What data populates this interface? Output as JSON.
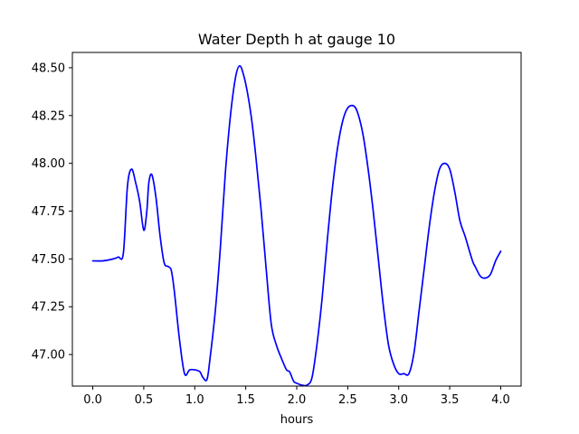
{
  "chart_data": {
    "type": "line",
    "title": "Water Depth h at gauge 10",
    "xlabel": "hours",
    "ylabel": "",
    "xlim": [
      -0.2,
      4.2
    ],
    "ylim": [
      46.835,
      48.58
    ],
    "x_ticks": [
      0.0,
      0.5,
      1.0,
      1.5,
      2.0,
      2.5,
      3.0,
      3.5,
      4.0
    ],
    "x_tick_labels": [
      "0.0",
      "0.5",
      "1.0",
      "1.5",
      "2.0",
      "2.5",
      "3.0",
      "3.5",
      "4.0"
    ],
    "y_ticks": [
      47.0,
      47.25,
      47.5,
      47.75,
      48.0,
      48.25,
      48.5
    ],
    "y_tick_labels": [
      "47.00",
      "47.25",
      "47.50",
      "47.75",
      "48.00",
      "48.25",
      "48.50"
    ],
    "grid": false,
    "legend": "none",
    "series": [
      {
        "color": "#0000ff",
        "x": [
          0.0,
          0.1,
          0.2,
          0.25,
          0.3,
          0.34,
          0.38,
          0.42,
          0.46,
          0.5,
          0.53,
          0.55,
          0.58,
          0.62,
          0.66,
          0.7,
          0.74,
          0.77,
          0.8,
          0.85,
          0.9,
          0.95,
          1.0,
          1.05,
          1.08,
          1.12,
          1.15,
          1.2,
          1.25,
          1.3,
          1.35,
          1.4,
          1.44,
          1.48,
          1.52,
          1.56,
          1.6,
          1.65,
          1.7,
          1.75,
          1.8,
          1.85,
          1.9,
          1.93,
          1.97,
          2.0,
          2.05,
          2.1,
          2.15,
          2.2,
          2.25,
          2.3,
          2.35,
          2.4,
          2.45,
          2.5,
          2.56,
          2.6,
          2.65,
          2.7,
          2.75,
          2.8,
          2.85,
          2.9,
          2.95,
          3.0,
          3.05,
          3.1,
          3.15,
          3.2,
          3.25,
          3.3,
          3.35,
          3.4,
          3.45,
          3.5,
          3.55,
          3.6,
          3.65,
          3.7,
          3.73,
          3.75,
          3.8,
          3.85,
          3.9,
          3.95,
          4.0
        ],
        "values": [
          47.49,
          47.49,
          47.5,
          47.51,
          47.53,
          47.88,
          47.97,
          47.9,
          47.8,
          47.65,
          47.75,
          47.9,
          47.94,
          47.82,
          47.62,
          47.48,
          47.46,
          47.44,
          47.33,
          47.08,
          46.9,
          46.92,
          46.92,
          46.91,
          46.88,
          46.87,
          46.98,
          47.22,
          47.55,
          47.95,
          48.25,
          48.45,
          48.51,
          48.46,
          48.36,
          48.22,
          48.03,
          47.76,
          47.45,
          47.16,
          47.05,
          46.98,
          46.92,
          46.91,
          46.86,
          46.85,
          46.84,
          46.84,
          46.88,
          47.06,
          47.3,
          47.6,
          47.87,
          48.08,
          48.22,
          48.29,
          48.3,
          48.26,
          48.15,
          47.97,
          47.75,
          47.5,
          47.25,
          47.05,
          46.95,
          46.9,
          46.9,
          46.9,
          47.01,
          47.23,
          47.45,
          47.67,
          47.85,
          47.97,
          48.0,
          47.97,
          47.85,
          47.7,
          47.62,
          47.53,
          47.48,
          47.46,
          47.41,
          47.4,
          47.42,
          47.49,
          47.54
        ]
      }
    ]
  }
}
